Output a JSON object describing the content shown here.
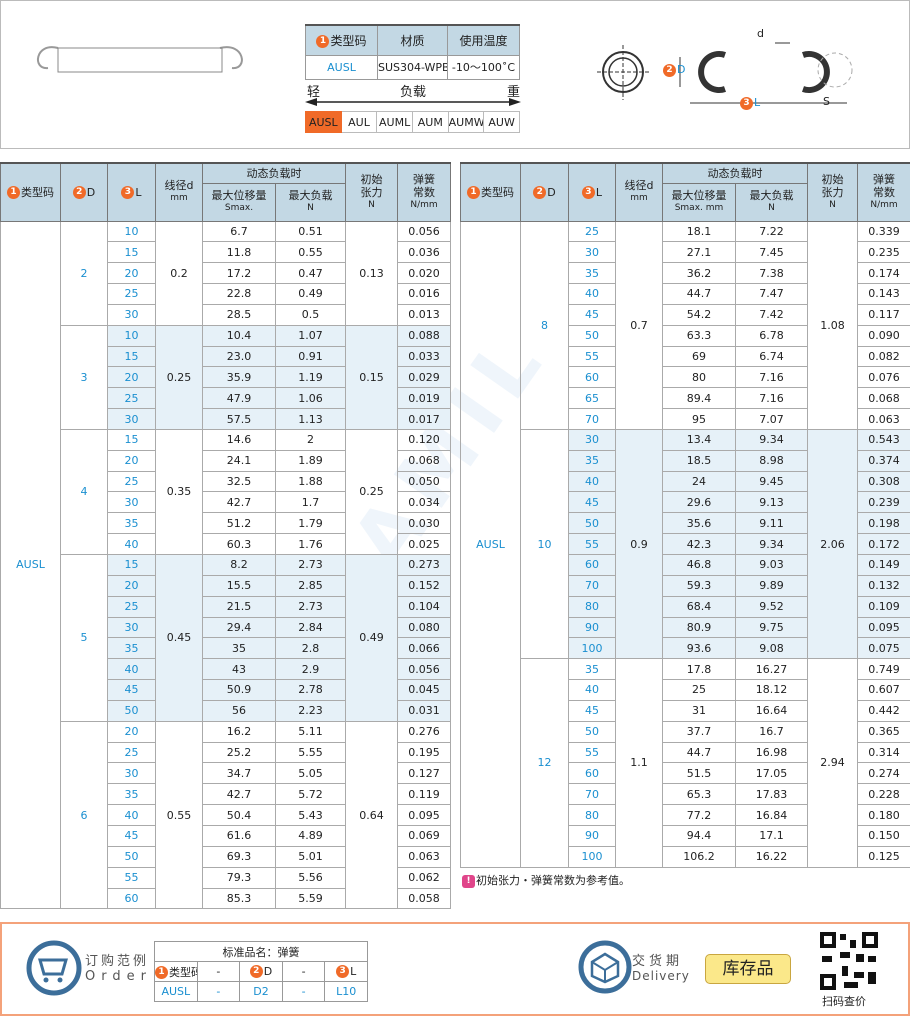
{
  "header": {
    "spec_table": {
      "headers": [
        "类型码",
        "材质",
        "使用温度"
      ],
      "values": [
        "AUSL",
        "SUS304-WPB",
        "-10～100˚C"
      ]
    },
    "load_scale": {
      "light": "轻",
      "label": "负载",
      "heavy": "重",
      "types": [
        "AUSL",
        "AUL",
        "AUML",
        "AUM",
        "AUMW",
        "AUW"
      ],
      "selected": "AUSL"
    },
    "diagram_labels": {
      "d": "d",
      "D": "D",
      "L": "L",
      "S": "S"
    }
  },
  "columns": {
    "type": "类型码",
    "D": "D",
    "L": "L",
    "wire": "线径d",
    "wire_unit": "mm",
    "dynamic": "动态负载时",
    "smax": "最大位移量",
    "smax_unit_left": "Smax.",
    "smax_unit_right": "Smax. mm",
    "maxload": "最大负载",
    "maxload_unit": "N",
    "init": "初始张力",
    "init_unit": "N",
    "spring": "弹簧常数",
    "spring_unit": "N/mm"
  },
  "type_code": "AUSL",
  "left_groups": [
    {
      "D": "2",
      "d": "0.2",
      "init": "0.13",
      "shaded": false,
      "rows": [
        [
          "10",
          "6.7",
          "0.51",
          "0.056"
        ],
        [
          "15",
          "11.8",
          "0.55",
          "0.036"
        ],
        [
          "20",
          "17.2",
          "0.47",
          "0.020"
        ],
        [
          "25",
          "22.8",
          "0.49",
          "0.016"
        ],
        [
          "30",
          "28.5",
          "0.5",
          "0.013"
        ]
      ]
    },
    {
      "D": "3",
      "d": "0.25",
      "init": "0.15",
      "shaded": true,
      "rows": [
        [
          "10",
          "10.4",
          "1.07",
          "0.088"
        ],
        [
          "15",
          "23.0",
          "0.91",
          "0.033"
        ],
        [
          "20",
          "35.9",
          "1.19",
          "0.029"
        ],
        [
          "25",
          "47.9",
          "1.06",
          "0.019"
        ],
        [
          "30",
          "57.5",
          "1.13",
          "0.017"
        ]
      ]
    },
    {
      "D": "4",
      "d": "0.35",
      "init": "0.25",
      "shaded": false,
      "rows": [
        [
          "15",
          "14.6",
          "2",
          "0.120"
        ],
        [
          "20",
          "24.1",
          "1.89",
          "0.068"
        ],
        [
          "25",
          "32.5",
          "1.88",
          "0.050"
        ],
        [
          "30",
          "42.7",
          "1.7",
          "0.034"
        ],
        [
          "35",
          "51.2",
          "1.79",
          "0.030"
        ],
        [
          "40",
          "60.3",
          "1.76",
          "0.025"
        ]
      ]
    },
    {
      "D": "5",
      "d": "0.45",
      "init": "0.49",
      "shaded": true,
      "rows": [
        [
          "15",
          "8.2",
          "2.73",
          "0.273"
        ],
        [
          "20",
          "15.5",
          "2.85",
          "0.152"
        ],
        [
          "25",
          "21.5",
          "2.73",
          "0.104"
        ],
        [
          "30",
          "29.4",
          "2.84",
          "0.080"
        ],
        [
          "35",
          "35",
          "2.8",
          "0.066"
        ],
        [
          "40",
          "43",
          "2.9",
          "0.056"
        ],
        [
          "45",
          "50.9",
          "2.78",
          "0.045"
        ],
        [
          "50",
          "56",
          "2.23",
          "0.031"
        ]
      ]
    },
    {
      "D": "6",
      "d": "0.55",
      "init": "0.64",
      "shaded": false,
      "rows": [
        [
          "20",
          "16.2",
          "5.11",
          "0.276"
        ],
        [
          "25",
          "25.2",
          "5.55",
          "0.195"
        ],
        [
          "30",
          "34.7",
          "5.05",
          "0.127"
        ],
        [
          "35",
          "42.7",
          "5.72",
          "0.119"
        ],
        [
          "40",
          "50.4",
          "5.43",
          "0.095"
        ],
        [
          "45",
          "61.6",
          "4.89",
          "0.069"
        ],
        [
          "50",
          "69.3",
          "5.01",
          "0.063"
        ],
        [
          "55",
          "79.3",
          "5.56",
          "0.062"
        ],
        [
          "60",
          "85.3",
          "5.59",
          "0.058"
        ]
      ]
    }
  ],
  "right_groups": [
    {
      "D": "8",
      "d": "0.7",
      "init": "1.08",
      "shaded": false,
      "rows": [
        [
          "25",
          "18.1",
          "7.22",
          "0.339"
        ],
        [
          "30",
          "27.1",
          "7.45",
          "0.235"
        ],
        [
          "35",
          "36.2",
          "7.38",
          "0.174"
        ],
        [
          "40",
          "44.7",
          "7.47",
          "0.143"
        ],
        [
          "45",
          "54.2",
          "7.42",
          "0.117"
        ],
        [
          "50",
          "63.3",
          "6.78",
          "0.090"
        ],
        [
          "55",
          "69",
          "6.74",
          "0.082"
        ],
        [
          "60",
          "80",
          "7.16",
          "0.076"
        ],
        [
          "65",
          "89.4",
          "7.16",
          "0.068"
        ],
        [
          "70",
          "95",
          "7.07",
          "0.063"
        ]
      ]
    },
    {
      "D": "10",
      "d": "0.9",
      "init": "2.06",
      "shaded": true,
      "rows": [
        [
          "30",
          "13.4",
          "9.34",
          "0.543"
        ],
        [
          "35",
          "18.5",
          "8.98",
          "0.374"
        ],
        [
          "40",
          "24",
          "9.45",
          "0.308"
        ],
        [
          "45",
          "29.6",
          "9.13",
          "0.239"
        ],
        [
          "50",
          "35.6",
          "9.11",
          "0.198"
        ],
        [
          "55",
          "42.3",
          "9.34",
          "0.172"
        ],
        [
          "60",
          "46.8",
          "9.03",
          "0.149"
        ],
        [
          "70",
          "59.3",
          "9.89",
          "0.132"
        ],
        [
          "80",
          "68.4",
          "9.52",
          "0.109"
        ],
        [
          "90",
          "80.9",
          "9.75",
          "0.095"
        ],
        [
          "100",
          "93.6",
          "9.08",
          "0.075"
        ]
      ]
    },
    {
      "D": "12",
      "d": "1.1",
      "init": "2.94",
      "shaded": false,
      "rows": [
        [
          "35",
          "17.8",
          "16.27",
          "0.749"
        ],
        [
          "40",
          "25",
          "18.12",
          "0.607"
        ],
        [
          "45",
          "31",
          "16.64",
          "0.442"
        ],
        [
          "50",
          "37.7",
          "16.7",
          "0.365"
        ],
        [
          "55",
          "44.7",
          "16.98",
          "0.314"
        ],
        [
          "60",
          "51.5",
          "17.05",
          "0.274"
        ],
        [
          "70",
          "65.3",
          "17.83",
          "0.228"
        ],
        [
          "80",
          "77.2",
          "16.84",
          "0.180"
        ],
        [
          "90",
          "94.4",
          "17.1",
          "0.150"
        ],
        [
          "100",
          "106.2",
          "16.22",
          "0.125"
        ]
      ]
    }
  ],
  "note": "初始张力・弹簧常数为参考值。",
  "order": {
    "title": "订购范例",
    "title_en": "Order",
    "table_title": "标准品名：弹簧",
    "col_type": "类型码",
    "col_D": "D",
    "col_L": "L",
    "dash": "-",
    "val_type": "AUSL",
    "val_D": "D2",
    "val_L": "L10"
  },
  "delivery": {
    "title": "交货期",
    "title_en": "Delivery",
    "badge": "库存品"
  },
  "qr": {
    "label": "扫码查价"
  },
  "watermark": "SAMIL",
  "colors": {
    "accent_orange": "#f06a28",
    "link_blue": "#1a8fd0",
    "header_bg": "#c3d8e4",
    "shade": "#e6f1f8"
  }
}
